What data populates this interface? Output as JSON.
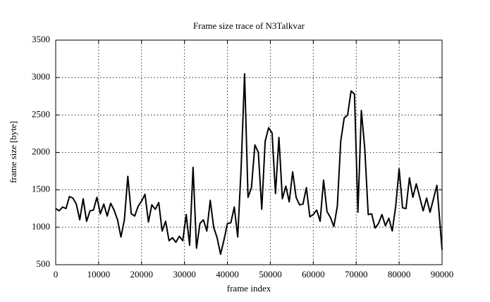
{
  "chart_data": {
    "type": "line",
    "title": "Frame size trace of N3Talkvar",
    "x_label": "frame index",
    "y_label": "frame size [byte]",
    "x": [
      0,
      800,
      1600,
      2400,
      3200,
      4000,
      4800,
      5600,
      6400,
      7200,
      8000,
      8800,
      9600,
      10400,
      11200,
      12000,
      12800,
      13600,
      14400,
      15200,
      16000,
      16800,
      17600,
      18400,
      19200,
      20000,
      20800,
      21600,
      22400,
      23200,
      24000,
      24800,
      25600,
      26400,
      27200,
      28000,
      28800,
      29600,
      30400,
      31200,
      32000,
      32800,
      33600,
      34400,
      35200,
      36000,
      36800,
      37600,
      38400,
      39200,
      40000,
      40800,
      41600,
      42400,
      43200,
      44000,
      44800,
      45600,
      46400,
      47200,
      48000,
      48800,
      49600,
      50400,
      51200,
      52000,
      52800,
      53600,
      54400,
      55200,
      56000,
      56800,
      57600,
      58400,
      59200,
      60000,
      60800,
      61600,
      62400,
      63200,
      64000,
      64800,
      65600,
      66400,
      67200,
      68000,
      68800,
      69600,
      70400,
      71200,
      72000,
      72800,
      73600,
      74400,
      75200,
      76000,
      76800,
      77600,
      78400,
      79200,
      80000,
      80800,
      81600,
      82400,
      83200,
      84000,
      84800,
      85600,
      86400,
      87200,
      88000,
      88800,
      90000
    ],
    "series": [
      {
        "name": "frame size",
        "color": "#000000",
        "values": [
          1250,
          1220,
          1270,
          1250,
          1410,
          1390,
          1310,
          1100,
          1380,
          1080,
          1220,
          1230,
          1400,
          1180,
          1310,
          1150,
          1320,
          1230,
          1100,
          870,
          1100,
          1680,
          1180,
          1150,
          1280,
          1350,
          1440,
          1070,
          1300,
          1240,
          1330,
          950,
          1080,
          820,
          860,
          800,
          880,
          820,
          1170,
          760,
          1800,
          720,
          1050,
          1100,
          950,
          1360,
          1000,
          860,
          640,
          830,
          1050,
          1060,
          1270,
          870,
          1800,
          3050,
          1400,
          1530,
          2100,
          2000,
          1240,
          2150,
          2330,
          2260,
          1450,
          2200,
          1380,
          1550,
          1340,
          1740,
          1400,
          1300,
          1310,
          1530,
          1140,
          1170,
          1230,
          1080,
          1630,
          1210,
          1130,
          1010,
          1280,
          2150,
          2460,
          2500,
          2820,
          2780,
          1200,
          2560,
          2050,
          1170,
          1180,
          990,
          1050,
          1170,
          1020,
          1120,
          950,
          1280,
          1780,
          1260,
          1250,
          1660,
          1400,
          1580,
          1400,
          1220,
          1390,
          1200,
          1380,
          1560,
          700
        ]
      }
    ],
    "xlim": [
      0,
      90000
    ],
    "xticks": [
      0,
      10000,
      20000,
      30000,
      40000,
      50000,
      60000,
      70000,
      80000,
      90000
    ],
    "ylim": [
      500,
      3500
    ],
    "yticks": [
      500,
      1000,
      1500,
      2000,
      2500,
      3000,
      3500
    ],
    "grid": true
  }
}
